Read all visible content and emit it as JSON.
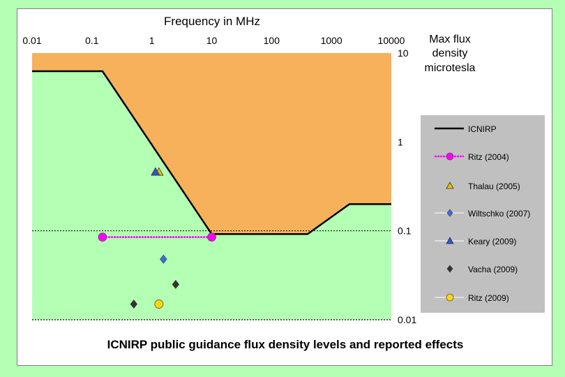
{
  "chart_data": {
    "type": "line",
    "title": "ICNIRP public guidance flux density levels and reported effects",
    "xlabel": "Frequency in MHz",
    "ylabel": "Max flux density microtesla",
    "ylabel_lines": [
      "Max flux",
      "density",
      "microtesla"
    ],
    "x_scale": "log",
    "y_scale": "log",
    "xlim": [
      0.01,
      10000
    ],
    "ylim": [
      0.01,
      10
    ],
    "x_ticks": [
      "0.01",
      "0.1",
      "1",
      "10",
      "100",
      "1000",
      "10000"
    ],
    "y_ticks": [
      "10",
      "1",
      "0.1",
      "0.01"
    ],
    "reference_line_y": 0.1,
    "colors": {
      "plot_bg": "#b3ffb3",
      "limit_fill": "#f6b15a",
      "legend_bg": "#c0c0c0",
      "icnirp": "#000000",
      "ritz2004": "#ff00ff",
      "thalau": "#e8c200",
      "wiltschko": "#3b6fe0",
      "keary": "#2f54d8",
      "vacha": "#333333",
      "ritz2009": "#ffd800"
    },
    "series": [
      {
        "name": "ICNIRP",
        "kind": "line",
        "x": [
          0.01,
          0.15,
          10,
          400,
          2000,
          10000
        ],
        "y": [
          6.25,
          6.25,
          0.092,
          0.092,
          0.2,
          0.2
        ]
      },
      {
        "name": "Ritz (2004)",
        "kind": "line-marker",
        "marker": "circle",
        "x": [
          0.15,
          10
        ],
        "y": [
          0.085,
          0.085
        ]
      },
      {
        "name": "Thalau (2005)",
        "kind": "marker",
        "marker": "triangle",
        "x": [
          1.315
        ],
        "y": [
          0.46
        ]
      },
      {
        "name": "Wiltschko (2007)",
        "kind": "marker",
        "marker": "diamond",
        "x": [
          1.565
        ],
        "y": [
          0.048
        ]
      },
      {
        "name": "Keary (2009)",
        "kind": "marker",
        "marker": "triangle",
        "x": [
          1.15
        ],
        "y": [
          0.46
        ]
      },
      {
        "name": "Vacha (2009)",
        "kind": "marker",
        "marker": "diamond",
        "x": [
          0.5,
          2.5
        ],
        "y": [
          0.015,
          0.025
        ]
      },
      {
        "name": "Ritz (2009)",
        "kind": "marker",
        "marker": "circle",
        "x": [
          1.315
        ],
        "y": [
          0.015
        ]
      }
    ],
    "legend_position": "right"
  }
}
